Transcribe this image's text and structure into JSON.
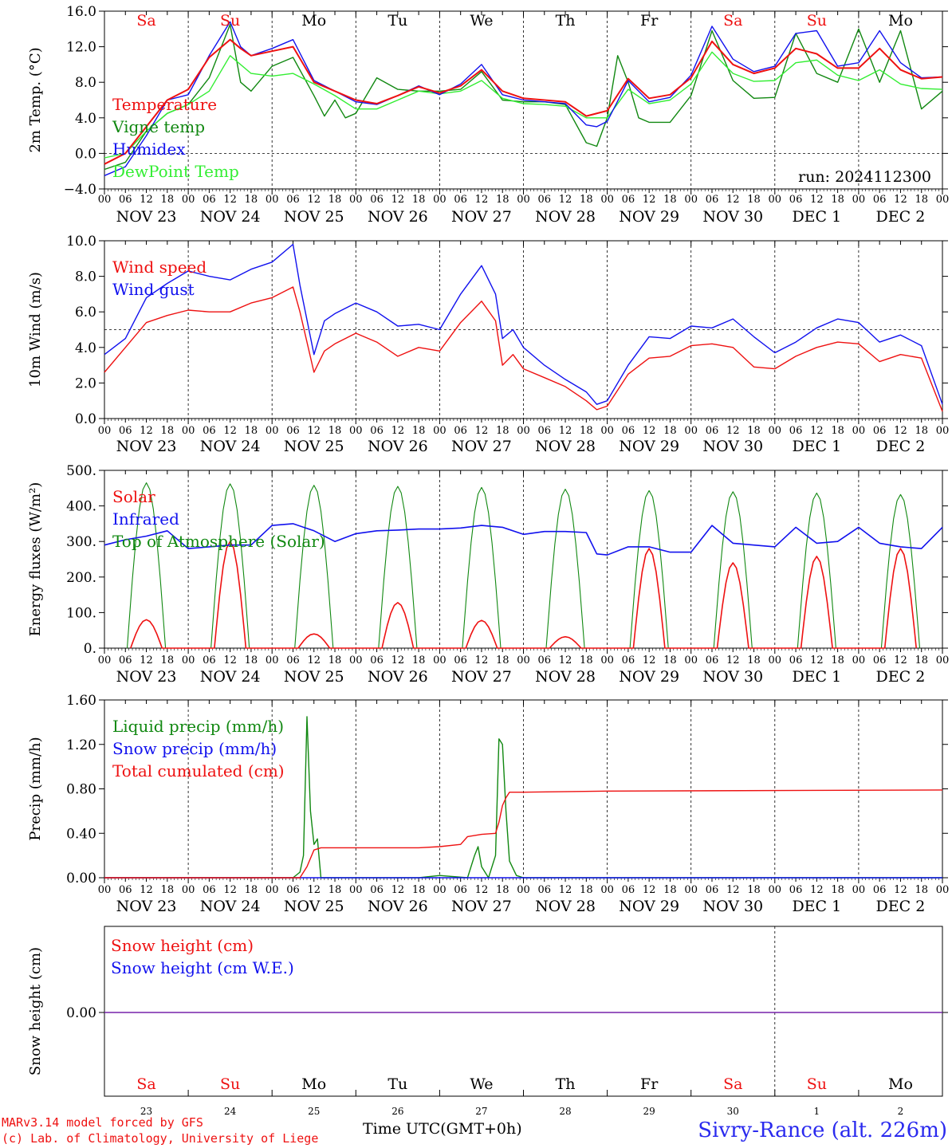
{
  "meta": {
    "run_label": "run: 2024112300",
    "model_line": "MARv3.14 model forced by GFS",
    "credit_line": "(c) Lab. of Climatology, University of Liege",
    "time_axis_label": "Time UTC(GMT+0h)",
    "station": "Sivry-Rance (alt. 226m)"
  },
  "colors": {
    "red": "#ee1111",
    "green": "#118811",
    "blue": "#1111ee",
    "lightgreen": "#33ee33",
    "purple": "#7722aa"
  },
  "days": {
    "weekday_labels": [
      "Sa",
      "Su",
      "Mo",
      "Tu",
      "We",
      "Th",
      "Fr",
      "Sa",
      "Su",
      "Mo"
    ],
    "weekday_is_weekend": [
      true,
      true,
      false,
      false,
      false,
      false,
      false,
      true,
      true,
      false
    ],
    "date_labels": [
      "NOV 23",
      "NOV 24",
      "NOV 25",
      "NOV 26",
      "NOV 27",
      "NOV 28",
      "NOV 29",
      "NOV 30",
      "DEC  1",
      "DEC  2"
    ],
    "day_numbers": [
      "23",
      "24",
      "25",
      "26",
      "27",
      "28",
      "29",
      "30",
      "1",
      "2"
    ],
    "hour_ticks": [
      "00",
      "06",
      "12",
      "18"
    ],
    "hour_end": "00"
  },
  "chart_data": [
    {
      "type": "line",
      "id": "temperature",
      "ylabel": "2m Temp. (°C)",
      "ylim": [
        -4,
        16
      ],
      "yticks": [
        "−4.0",
        "0.0",
        "4.0",
        "8.0",
        "12.0",
        "16.0"
      ],
      "ytick_values": [
        -4,
        0,
        4,
        8,
        12,
        16
      ],
      "dashed_y": 0,
      "x_unit": "hours since NOV 23 00 UTC",
      "series": [
        {
          "name": "Temperature",
          "color": "red",
          "x": [
            0,
            6,
            12,
            18,
            24,
            30,
            36,
            39,
            42,
            48,
            54,
            60,
            66,
            72,
            78,
            84,
            90,
            96,
            102,
            108,
            114,
            120,
            126,
            132,
            138,
            144,
            150,
            156,
            162,
            168,
            174,
            180,
            186,
            192,
            198,
            204,
            210,
            216,
            222,
            228,
            234,
            240
          ],
          "values": [
            -1.2,
            0,
            3,
            6,
            7.2,
            10.8,
            12.8,
            11.8,
            11,
            11.5,
            12,
            8,
            7,
            6,
            5.6,
            6.5,
            7.5,
            6.8,
            7.6,
            9.4,
            7,
            6.2,
            6,
            5.8,
            4.2,
            4.8,
            8.4,
            6.2,
            6.6,
            8.5,
            12.6,
            10,
            9,
            9.6,
            11.8,
            11.2,
            9.6,
            9.6,
            11.8,
            9.4,
            8.4,
            8.6
          ]
        },
        {
          "name": "Vigne temp",
          "color": "green",
          "x": [
            0,
            6,
            12,
            18,
            24,
            30,
            36,
            39,
            42,
            48,
            54,
            60,
            63,
            66,
            69,
            72,
            78,
            84,
            90,
            96,
            102,
            108,
            114,
            120,
            126,
            132,
            138,
            141,
            144,
            147,
            150,
            153,
            156,
            162,
            168,
            174,
            180,
            186,
            192,
            198,
            204,
            210,
            216,
            222,
            228,
            234,
            240
          ],
          "values": [
            -1.8,
            -1,
            2.5,
            4.5,
            5.5,
            8.5,
            14.5,
            8,
            7,
            9.8,
            10.8,
            6.5,
            4.2,
            6,
            4,
            4.5,
            8.5,
            7.2,
            7,
            7,
            7.2,
            9.2,
            6,
            5.8,
            5.8,
            5.5,
            1.2,
            0.8,
            4,
            11,
            8,
            4,
            3.5,
            3.5,
            6.5,
            13.8,
            8.2,
            6.2,
            6.3,
            13.5,
            9,
            8,
            14,
            8,
            13.8,
            5,
            7
          ]
        },
        {
          "name": "Humidex",
          "color": "blue",
          "x": [
            0,
            6,
            12,
            18,
            24,
            30,
            36,
            39,
            42,
            48,
            54,
            60,
            66,
            72,
            78,
            84,
            90,
            96,
            102,
            108,
            114,
            120,
            126,
            132,
            138,
            141,
            144,
            150,
            156,
            162,
            168,
            174,
            180,
            186,
            192,
            198,
            204,
            210,
            216,
            222,
            228,
            234,
            240
          ],
          "values": [
            -2.5,
            -1.5,
            2,
            6,
            6.6,
            11,
            14.8,
            12,
            11,
            11.8,
            12.8,
            8.2,
            7,
            5.8,
            5.5,
            6.5,
            7.6,
            6.6,
            7.8,
            10,
            6.6,
            6,
            5.8,
            5.6,
            3.2,
            3,
            3.6,
            8.2,
            5.8,
            6.3,
            8.8,
            14.3,
            10.6,
            9.2,
            9.8,
            13.5,
            13.8,
            9.8,
            10.2,
            13.8,
            10.2,
            8.5,
            8.6
          ]
        },
        {
          "name": "DewPoint Temp",
          "color": "lightgreen",
          "x": [
            0,
            6,
            12,
            18,
            24,
            30,
            36,
            42,
            48,
            54,
            60,
            66,
            72,
            78,
            84,
            90,
            96,
            102,
            108,
            114,
            120,
            126,
            132,
            138,
            144,
            150,
            156,
            162,
            168,
            174,
            180,
            186,
            192,
            198,
            204,
            210,
            216,
            222,
            228,
            234,
            240
          ],
          "values": [
            -0.5,
            0,
            2.5,
            4.5,
            5.5,
            7,
            11,
            9,
            8.7,
            9,
            7.8,
            6.5,
            5,
            5,
            6,
            7,
            6.7,
            7,
            8.2,
            6.2,
            5.6,
            5.5,
            5.3,
            4,
            4,
            7.2,
            5.6,
            6,
            7.8,
            11.4,
            9,
            8.1,
            8.2,
            10.2,
            10.5,
            8.8,
            8.2,
            9.4,
            7.8,
            7.3,
            7.2
          ]
        }
      ]
    },
    {
      "type": "line",
      "id": "wind",
      "ylabel": "10m Wind (m/s)",
      "ylim": [
        0,
        10
      ],
      "yticks": [
        "0.0",
        "2.0",
        "4.0",
        "6.0",
        "8.0",
        "10.0"
      ],
      "ytick_values": [
        0,
        2,
        4,
        6,
        8,
        10
      ],
      "dashed_y": 5,
      "x_unit": "hours since NOV 23 00 UTC",
      "series": [
        {
          "name": "Wind speed",
          "color": "red",
          "x": [
            0,
            6,
            12,
            18,
            24,
            30,
            36,
            42,
            48,
            54,
            56,
            60,
            63,
            66,
            72,
            78,
            84,
            90,
            96,
            102,
            108,
            112,
            114,
            117,
            120,
            126,
            132,
            138,
            141,
            144,
            150,
            156,
            162,
            168,
            174,
            180,
            186,
            192,
            198,
            204,
            210,
            216,
            222,
            228,
            234,
            240
          ],
          "values": [
            2.6,
            4,
            5.4,
            5.8,
            6.1,
            6,
            6,
            6.5,
            6.8,
            7.4,
            6,
            2.6,
            3.8,
            4.2,
            4.8,
            4.3,
            3.5,
            4,
            3.8,
            5.4,
            6.6,
            5.5,
            3,
            3.6,
            2.8,
            2.3,
            1.8,
            1,
            0.5,
            0.7,
            2.5,
            3.4,
            3.5,
            4.1,
            4.2,
            4,
            2.9,
            2.8,
            3.5,
            4,
            4.3,
            4.2,
            3.2,
            3.6,
            3.4,
            0.4
          ]
        },
        {
          "name": "Wind gust",
          "color": "blue",
          "x": [
            0,
            6,
            12,
            18,
            24,
            30,
            36,
            42,
            48,
            54,
            56,
            60,
            63,
            66,
            72,
            78,
            84,
            90,
            96,
            102,
            108,
            112,
            114,
            117,
            120,
            126,
            132,
            138,
            141,
            144,
            150,
            156,
            162,
            168,
            174,
            180,
            186,
            192,
            198,
            204,
            210,
            216,
            222,
            228,
            234,
            240
          ],
          "values": [
            3.6,
            4.5,
            6.8,
            7.6,
            8.3,
            8,
            7.8,
            8.4,
            8.8,
            9.8,
            7.5,
            3.6,
            5.5,
            5.9,
            6.5,
            6,
            5.2,
            5.3,
            5,
            7,
            8.6,
            7,
            4.5,
            5,
            4,
            3,
            2.2,
            1.5,
            0.8,
            1,
            3,
            4.6,
            4.5,
            5.2,
            5.1,
            5.6,
            4.6,
            3.7,
            4.3,
            5.1,
            5.6,
            5.4,
            4.3,
            4.7,
            4.1,
            0.8
          ]
        }
      ]
    },
    {
      "type": "line",
      "id": "energy",
      "ylabel": "Energy fluxes (W/m²)",
      "ylim": [
        0,
        500
      ],
      "yticks": [
        "0.",
        "100.",
        "200.",
        "300.",
        "400.",
        "500."
      ],
      "ytick_values": [
        0,
        100,
        200,
        300,
        400,
        500
      ],
      "x_unit": "hours since NOV 23 00 UTC",
      "daily_noon_peaks": {
        "toa": [
          465,
          462,
          458,
          455,
          452,
          447,
          443,
          440,
          436,
          432
        ],
        "solar": [
          80,
          300,
          40,
          128,
          78,
          32,
          280,
          240,
          258,
          280
        ]
      },
      "series": [
        {
          "name": "Solar",
          "color": "red",
          "x": [],
          "values": []
        },
        {
          "name": "Infrared",
          "color": "blue",
          "x": [
            0,
            6,
            12,
            18,
            24,
            30,
            36,
            42,
            48,
            54,
            60,
            66,
            72,
            78,
            84,
            90,
            96,
            102,
            108,
            114,
            120,
            126,
            132,
            138,
            141,
            144,
            150,
            156,
            162,
            168,
            174,
            180,
            186,
            192,
            198,
            204,
            210,
            216,
            222,
            228,
            234,
            240
          ],
          "values": [
            290,
            305,
            315,
            330,
            280,
            285,
            290,
            290,
            345,
            350,
            330,
            300,
            322,
            330,
            332,
            335,
            335,
            338,
            345,
            340,
            320,
            328,
            328,
            325,
            265,
            262,
            285,
            285,
            270,
            270,
            345,
            295,
            290,
            285,
            340,
            295,
            300,
            340,
            295,
            285,
            280,
            340
          ]
        },
        {
          "name": "Top of Atmosphere (Solar)",
          "color": "green",
          "x": [],
          "values": []
        }
      ]
    },
    {
      "type": "line",
      "id": "precip",
      "ylabel": "Precip (mm/h)",
      "ylim": [
        0,
        1.6
      ],
      "yticks": [
        "0.00",
        "0.40",
        "0.80",
        "1.20",
        "1.60"
      ],
      "ytick_values": [
        0,
        0.4,
        0.8,
        1.2,
        1.6
      ],
      "x_unit": "hours since NOV 23 00 UTC",
      "series": [
        {
          "name": "Liquid precip (mm/h)",
          "color": "green",
          "x": [
            0,
            54,
            56,
            57,
            58,
            59,
            60,
            61,
            62,
            64,
            70,
            90,
            96,
            104,
            106,
            107,
            108,
            110,
            112,
            113,
            114,
            115,
            116,
            118,
            120,
            240
          ],
          "values": [
            0,
            0,
            0.05,
            0.2,
            1.45,
            0.6,
            0.3,
            0.35,
            0,
            0,
            0,
            0,
            0.02,
            0,
            0.2,
            0.28,
            0.1,
            0,
            0.2,
            1.25,
            1.2,
            0.6,
            0.15,
            0.02,
            0,
            0
          ]
        },
        {
          "name": "Snow precip (mm/h)",
          "color": "blue",
          "x": [
            0,
            240
          ],
          "values": [
            0,
            0
          ]
        },
        {
          "name": "Total cumulated (cm)",
          "color": "red",
          "x": [
            0,
            56,
            58,
            60,
            62,
            90,
            96,
            102,
            104,
            108,
            112,
            113,
            114,
            115,
            116,
            117,
            120,
            144,
            240
          ],
          "values": [
            0,
            0,
            0.1,
            0.25,
            0.27,
            0.27,
            0.28,
            0.3,
            0.37,
            0.39,
            0.4,
            0.5,
            0.65,
            0.72,
            0.77,
            0.77,
            0.77,
            0.78,
            0.79
          ]
        }
      ]
    },
    {
      "type": "line",
      "id": "snow",
      "ylabel": "Snow height (cm)",
      "yticks": [
        "0.00"
      ],
      "ytick_values": [
        0
      ],
      "x_unit": "hours since NOV 23 00 UTC",
      "series": [
        {
          "name": "Snow height (cm)",
          "color": "red",
          "x": [
            0,
            240
          ],
          "values": [
            0,
            0
          ]
        },
        {
          "name": "Snow height (cm W.E.)",
          "color": "blue",
          "x": [
            0,
            240
          ],
          "values": [
            0,
            0
          ]
        }
      ]
    }
  ]
}
